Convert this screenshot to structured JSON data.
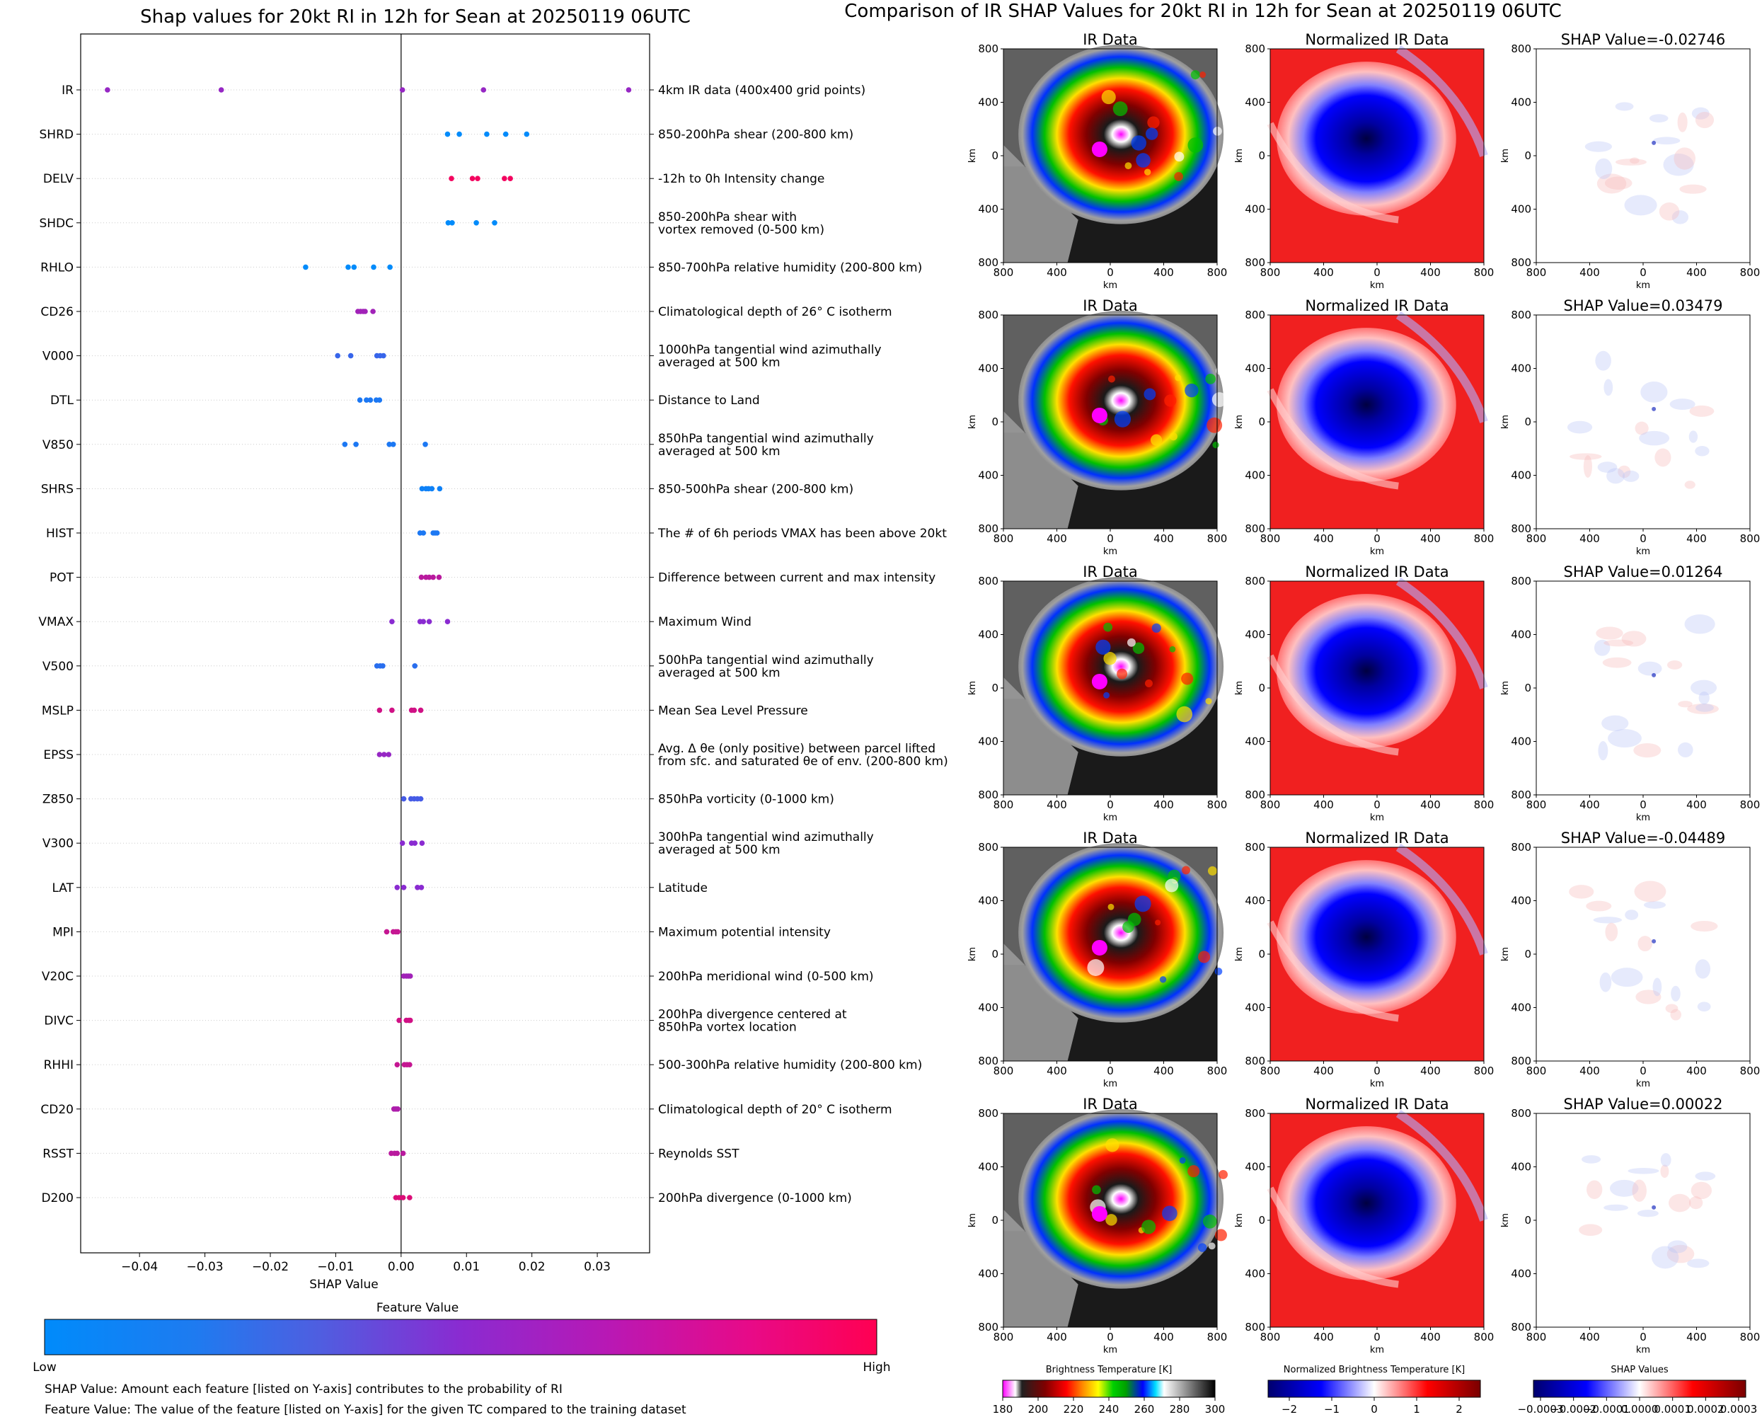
{
  "left": {
    "title": "Shap values for 20kt RI in 12h for Sean at 20250119 06UTC",
    "xlabel": "SHAP Value",
    "colorbar_title": "Feature Value",
    "colorbar_low": "Low",
    "colorbar_high": "High",
    "note1": "SHAP Value: Amount each feature [listed on Y-axis] contributes to the probability of RI",
    "note2": "Feature Value: The value of the feature [listed on Y-axis] for the given TC compared to the training dataset",
    "colors": {
      "low": "#008bfb",
      "mid": "#8a2bd1",
      "high": "#ff0052"
    }
  },
  "right": {
    "title": "Comparison of IR SHAP Values for 20kt RI in 12h for Sean at 20250119 06UTC",
    "col_ir": "IR Data",
    "col_norm": "Normalized IR Data",
    "shap_titles": [
      "SHAP Value=-0.02746",
      "SHAP Value=0.03479",
      "SHAP Value=0.01264",
      "SHAP Value=-0.04489",
      "SHAP Value=0.00022"
    ],
    "axis_label": "km",
    "axis_ticks": [
      "800",
      "400",
      "0",
      "400",
      "800"
    ],
    "cb_bt": {
      "title": "Brightness Temperature [K]",
      "ticks": [
        "180",
        "200",
        "220",
        "240",
        "260",
        "280",
        "300"
      ]
    },
    "cb_norm": {
      "title": "Normalized Brightness Temperature [K]",
      "ticks": [
        "−2",
        "−1",
        "0",
        "1",
        "2"
      ]
    },
    "cb_shap": {
      "title": "SHAP Values",
      "ticks": [
        "−0.0003",
        "−0.0002",
        "−0.0001",
        "0.0000",
        "0.0001",
        "0.0002",
        "0.0003"
      ]
    }
  },
  "chart_data": {
    "type": "scatter",
    "title": "Shap values for 20kt RI in 12h for Sean at 20250119 06UTC",
    "xlabel": "SHAP Value",
    "xlim": [
      -0.049,
      0.038
    ],
    "xticks": [
      -0.04,
      -0.03,
      -0.02,
      -0.01,
      0.0,
      0.01,
      0.02,
      0.03
    ],
    "xtick_labels": [
      "−0.04",
      "−0.03",
      "−0.02",
      "−0.01",
      "0.00",
      "0.01",
      "0.02",
      "0.03"
    ],
    "features": [
      {
        "name": "IR",
        "desc": [
          "4km IR data (400x400 grid points)"
        ],
        "points": [
          [
            -0.0449,
            0.55
          ],
          [
            -0.0275,
            0.55
          ],
          [
            0.0002,
            0.55
          ],
          [
            0.0126,
            0.55
          ],
          [
            0.0348,
            0.55
          ]
        ]
      },
      {
        "name": "SHRD",
        "desc": [
          "850-200hPa shear (200-800 km)"
        ],
        "points": [
          [
            0.0071,
            0.0
          ],
          [
            0.0089,
            0.0
          ],
          [
            0.0131,
            0.0
          ],
          [
            0.016,
            0.0
          ],
          [
            0.0192,
            0.0
          ]
        ]
      },
      {
        "name": "DELV",
        "desc": [
          "-12h to 0h Intensity change"
        ],
        "points": [
          [
            0.0077,
            0.95
          ],
          [
            0.0109,
            0.95
          ],
          [
            0.0117,
            0.95
          ],
          [
            0.0158,
            0.95
          ],
          [
            0.0167,
            0.95
          ]
        ]
      },
      {
        "name": "SHDC",
        "desc": [
          "850-200hPa shear with",
          "vortex removed (0-500 km)"
        ],
        "points": [
          [
            0.0072,
            0.0
          ],
          [
            0.0078,
            0.0
          ],
          [
            0.0115,
            0.0
          ],
          [
            0.0143,
            0.0
          ]
        ]
      },
      {
        "name": "RHLO",
        "desc": [
          "850-700hPa relative humidity (200-800 km)"
        ],
        "points": [
          [
            -0.0146,
            0.0
          ],
          [
            -0.0081,
            0.0
          ],
          [
            -0.0072,
            0.0
          ],
          [
            -0.0042,
            0.0
          ],
          [
            -0.0017,
            0.0
          ]
        ]
      },
      {
        "name": "CD26",
        "desc": [
          "Climatological depth of 26° C isotherm"
        ],
        "points": [
          [
            -0.0066,
            0.6
          ],
          [
            -0.0062,
            0.6
          ],
          [
            -0.0058,
            0.6
          ],
          [
            -0.0055,
            0.6
          ],
          [
            -0.0043,
            0.6
          ]
        ]
      },
      {
        "name": "V000",
        "desc": [
          "1000hPa tangential wind azimuthally",
          "averaged at 500 km"
        ],
        "points": [
          [
            -0.0097,
            0.2
          ],
          [
            -0.0077,
            0.2
          ],
          [
            -0.0037,
            0.2
          ],
          [
            -0.0032,
            0.2
          ],
          [
            -0.0027,
            0.2
          ]
        ]
      },
      {
        "name": "DTL",
        "desc": [
          "Distance to Land"
        ],
        "points": [
          [
            -0.0063,
            0.1
          ],
          [
            -0.0053,
            0.1
          ],
          [
            -0.0047,
            0.1
          ],
          [
            -0.0038,
            0.1
          ],
          [
            -0.0033,
            0.1
          ]
        ]
      },
      {
        "name": "V850",
        "desc": [
          "850hPa tangential wind azimuthally",
          "averaged at 500 km"
        ],
        "points": [
          [
            -0.0086,
            0.1
          ],
          [
            -0.0069,
            0.1
          ],
          [
            -0.0018,
            0.1
          ],
          [
            -0.0012,
            0.1
          ],
          [
            0.0037,
            0.1
          ]
        ]
      },
      {
        "name": "SHRS",
        "desc": [
          "850-500hPa shear (200-800 km)"
        ],
        "points": [
          [
            0.0032,
            0.05
          ],
          [
            0.0038,
            0.05
          ],
          [
            0.0042,
            0.05
          ],
          [
            0.0047,
            0.05
          ],
          [
            0.0059,
            0.05
          ]
        ]
      },
      {
        "name": "HIST",
        "desc": [
          "The # of 6h periods VMAX has been above 20kt"
        ],
        "points": [
          [
            0.0029,
            0.1
          ],
          [
            0.0034,
            0.1
          ],
          [
            0.0049,
            0.1
          ],
          [
            0.0052,
            0.1
          ],
          [
            0.0055,
            0.1
          ]
        ]
      },
      {
        "name": "POT",
        "desc": [
          "Difference between current and max intensity"
        ],
        "points": [
          [
            0.0031,
            0.7
          ],
          [
            0.0038,
            0.7
          ],
          [
            0.0043,
            0.7
          ],
          [
            0.0049,
            0.7
          ],
          [
            0.0058,
            0.7
          ]
        ]
      },
      {
        "name": "VMAX",
        "desc": [
          "Maximum Wind"
        ],
        "points": [
          [
            -0.0014,
            0.5
          ],
          [
            0.0029,
            0.5
          ],
          [
            0.0034,
            0.5
          ],
          [
            0.0043,
            0.5
          ],
          [
            0.0071,
            0.5
          ]
        ]
      },
      {
        "name": "V500",
        "desc": [
          "500hPa tangential wind azimuthally",
          "averaged at 500 km"
        ],
        "points": [
          [
            -0.0037,
            0.15
          ],
          [
            -0.0032,
            0.15
          ],
          [
            -0.0028,
            0.15
          ],
          [
            0.0021,
            0.15
          ]
        ]
      },
      {
        "name": "MSLP",
        "desc": [
          "Mean Sea Level Pressure"
        ],
        "points": [
          [
            -0.0033,
            0.8
          ],
          [
            -0.0014,
            0.8
          ],
          [
            0.0016,
            0.8
          ],
          [
            0.002,
            0.8
          ],
          [
            0.003,
            0.8
          ]
        ]
      },
      {
        "name": "EPSS",
        "desc": [
          "Avg. Δ θe (only positive) between parcel lifted",
          "from sfc. and saturated θe of env. (200-800 km)"
        ],
        "points": [
          [
            -0.0033,
            0.55
          ],
          [
            -0.0026,
            0.55
          ],
          [
            -0.0019,
            0.55
          ]
        ]
      },
      {
        "name": "Z850",
        "desc": [
          "850hPa vorticity (0-1000 km)"
        ],
        "points": [
          [
            0.0004,
            0.25
          ],
          [
            0.0015,
            0.25
          ],
          [
            0.002,
            0.25
          ],
          [
            0.0025,
            0.25
          ],
          [
            0.003,
            0.25
          ]
        ]
      },
      {
        "name": "V300",
        "desc": [
          "300hPa tangential wind azimuthally",
          "averaged at 500 km"
        ],
        "points": [
          [
            0.0002,
            0.5
          ],
          [
            0.0016,
            0.5
          ],
          [
            0.0021,
            0.5
          ],
          [
            0.0032,
            0.5
          ]
        ]
      },
      {
        "name": "LAT",
        "desc": [
          "Latitude"
        ],
        "points": [
          [
            -0.0006,
            0.5
          ],
          [
            0.0004,
            0.5
          ],
          [
            0.0025,
            0.5
          ],
          [
            0.0031,
            0.5
          ]
        ]
      },
      {
        "name": "MPI",
        "desc": [
          "Maximum potential intensity"
        ],
        "points": [
          [
            -0.0022,
            0.75
          ],
          [
            -0.0012,
            0.75
          ],
          [
            -0.0008,
            0.75
          ],
          [
            -0.0005,
            0.75
          ]
        ]
      },
      {
        "name": "V20C",
        "desc": [
          "200hPa meridional wind (0-500 km)"
        ],
        "points": [
          [
            0.0004,
            0.6
          ],
          [
            0.0008,
            0.6
          ],
          [
            0.0011,
            0.6
          ],
          [
            0.0014,
            0.6
          ]
        ]
      },
      {
        "name": "DIVC",
        "desc": [
          "200hPa divergence centered at",
          "850hPa vortex location"
        ],
        "points": [
          [
            -0.0003,
            0.8
          ],
          [
            0.0008,
            0.8
          ],
          [
            0.0012,
            0.8
          ],
          [
            0.0014,
            0.8
          ]
        ]
      },
      {
        "name": "RHHI",
        "desc": [
          "500-300hPa relative humidity (200-800 km)"
        ],
        "points": [
          [
            -0.0006,
            0.75
          ],
          [
            0.0005,
            0.75
          ],
          [
            0.0009,
            0.75
          ],
          [
            0.0013,
            0.75
          ]
        ]
      },
      {
        "name": "CD20",
        "desc": [
          "Climatological depth of 20° C isotherm"
        ],
        "points": [
          [
            -0.0011,
            0.65
          ],
          [
            -0.0008,
            0.65
          ],
          [
            -0.0005,
            0.65
          ]
        ]
      },
      {
        "name": "RSST",
        "desc": [
          "Reynolds SST"
        ],
        "points": [
          [
            -0.0015,
            0.7
          ],
          [
            -0.001,
            0.7
          ],
          [
            -0.0006,
            0.7
          ],
          [
            0.0003,
            0.7
          ]
        ]
      },
      {
        "name": "D200",
        "desc": [
          "200hPa divergence (0-1000 km)"
        ],
        "points": [
          [
            -0.0008,
            0.85
          ],
          [
            -0.0003,
            0.85
          ],
          [
            0.0003,
            0.85
          ],
          [
            0.0013,
            0.85
          ]
        ]
      }
    ]
  }
}
